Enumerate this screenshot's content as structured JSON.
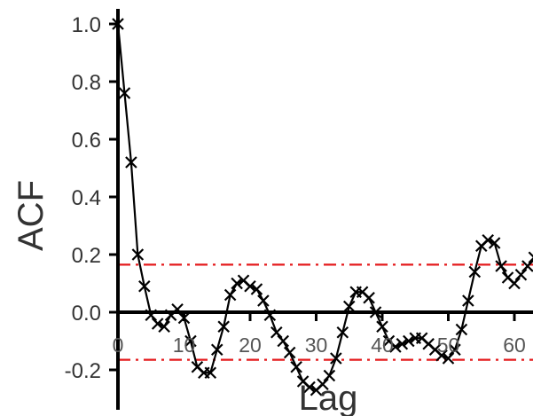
{
  "chart_data": {
    "type": "line",
    "title": "",
    "xlabel": "Lag",
    "ylabel": "ACF",
    "xlim": [
      0,
      63
    ],
    "ylim": [
      -0.33,
      1.07
    ],
    "xticks": [
      0,
      10,
      20,
      30,
      40,
      50,
      60
    ],
    "xtick_labels": [
      "0",
      "10",
      "20",
      "30",
      "40",
      "50",
      "60"
    ],
    "yticks": [
      -0.2,
      0.0,
      0.2,
      0.4,
      0.6,
      0.8,
      1.0
    ],
    "ytick_labels": [
      "-0.2",
      "0.0",
      "0.2",
      "0.4",
      "0.6",
      "0.8",
      "1.0"
    ],
    "grid": false,
    "marker": "x",
    "confidence_bounds": {
      "upper": 0.165,
      "lower": -0.165,
      "color": "#e41a1c",
      "style": "dash-dot"
    },
    "series": [
      {
        "color": "#000000",
        "x": [
          0,
          1,
          2,
          3,
          4,
          5,
          6,
          7,
          8,
          9,
          10,
          11,
          12,
          13,
          14,
          15,
          16,
          17,
          18,
          19,
          20,
          21,
          22,
          23,
          24,
          25,
          26,
          27,
          28,
          29,
          30,
          31,
          32,
          33,
          34,
          35,
          36,
          37,
          38,
          39,
          40,
          41,
          42,
          43,
          44,
          45,
          46,
          47,
          48,
          49,
          50,
          51,
          52,
          53,
          54,
          55,
          56,
          57,
          58,
          59,
          60,
          61,
          62,
          63
        ],
        "y": [
          1.0,
          0.76,
          0.52,
          0.2,
          0.09,
          -0.01,
          -0.04,
          -0.05,
          -0.01,
          0.01,
          -0.02,
          -0.1,
          -0.19,
          -0.21,
          -0.21,
          -0.13,
          -0.05,
          0.06,
          0.1,
          0.11,
          0.09,
          0.08,
          0.04,
          -0.01,
          -0.07,
          -0.1,
          -0.14,
          -0.19,
          -0.24,
          -0.26,
          -0.27,
          -0.25,
          -0.22,
          -0.16,
          -0.07,
          0.02,
          0.07,
          0.07,
          0.05,
          0.0,
          -0.05,
          -0.1,
          -0.12,
          -0.11,
          -0.1,
          -0.09,
          -0.09,
          -0.11,
          -0.13,
          -0.15,
          -0.16,
          -0.13,
          -0.06,
          0.04,
          0.14,
          0.23,
          0.25,
          0.24,
          0.16,
          0.12,
          0.1,
          0.13,
          0.16,
          0.19
        ]
      }
    ]
  }
}
